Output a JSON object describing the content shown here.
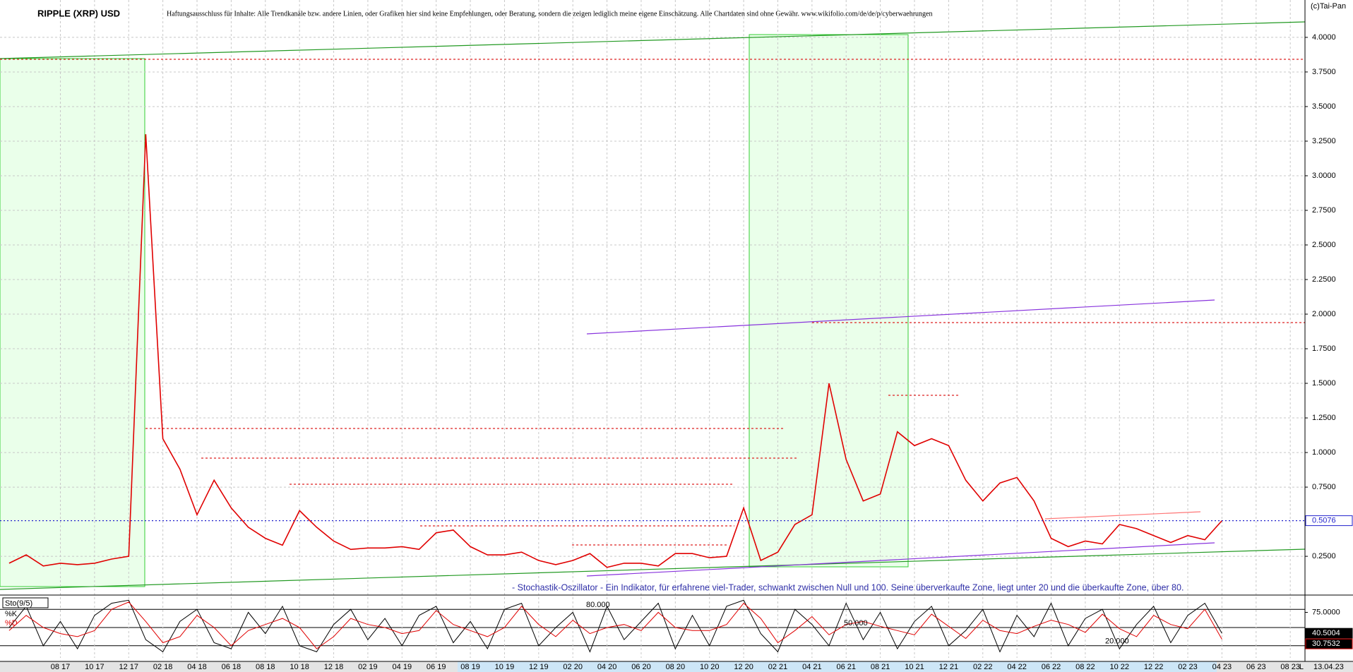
{
  "chart_data": {
    "type": "line",
    "title": "RIPPLE (XRP) USD",
    "disclaimer": "Haftungsausschluss für Inhalte: Alle Trendkanäle bzw. andere Linien, oder Grafiken hier sind keine Empfehlungen, oder Beratung, sondern die zeigen lediglich meine eigene Einschätzung. Alle Chartdaten sind ohne Gewähr.  www.wikifolio.com/de/de/p/cyberwaehrungen",
    "copyright": "(c)Tai-Pan",
    "indicator_note": "- Stochastik-Oszillator - Ein Indikator, für erfahrene viel-Trader, schwankt zwischen Null und 100. Seine überverkaufte Zone, liegt unter 20 und die überkaufte Zone, über 80.",
    "indicator_label": "Sto(9/5)",
    "last_date": "13.04.23",
    "scale_mode": "L",
    "categories": [
      null,
      null,
      null,
      "08 17",
      null,
      "10 17",
      null,
      "12 17",
      null,
      "02 18",
      null,
      "04 18",
      null,
      "06 18",
      null,
      "08 18",
      null,
      "10 18",
      null,
      "12 18",
      null,
      "02 19",
      null,
      "04 19",
      null,
      "06 19",
      null,
      "08 19",
      null,
      "10 19",
      null,
      "12 19",
      null,
      "02 20",
      null,
      "04 20",
      null,
      "06 20",
      null,
      "08 20",
      null,
      "10 20",
      null,
      "12 20",
      null,
      "02 21",
      null,
      "04 21",
      null,
      "06 21",
      null,
      "08 21",
      null,
      "10 21",
      null,
      "12 21",
      null,
      "02 22",
      null,
      "04 22",
      null,
      "06 22",
      null,
      "08 22",
      null,
      "10 22",
      null,
      "12 22",
      null,
      "02 23",
      null,
      "04 23",
      null,
      "06 23",
      null,
      "08 23"
    ],
    "series": [
      {
        "color": "#e00000",
        "values": [
          0.2,
          0.26,
          0.18,
          0.2,
          0.19,
          0.2,
          0.23,
          0.25,
          3.3,
          1.1,
          0.88,
          0.55,
          0.8,
          0.6,
          0.46,
          0.38,
          0.33,
          0.58,
          0.46,
          0.36,
          0.3,
          0.31,
          0.31,
          0.32,
          0.3,
          0.42,
          0.44,
          0.32,
          0.26,
          0.26,
          0.28,
          0.22,
          0.19,
          0.22,
          0.27,
          0.17,
          0.2,
          0.2,
          0.18,
          0.27,
          0.27,
          0.24,
          0.25,
          0.6,
          0.22,
          0.28,
          0.48,
          0.55,
          1.5,
          0.95,
          0.65,
          0.7,
          1.15,
          1.05,
          1.1,
          1.05,
          0.8,
          0.65,
          0.78,
          0.82,
          0.65,
          0.38,
          0.32,
          0.36,
          0.34,
          0.48,
          0.45,
          0.4,
          0.35,
          0.4,
          0.37,
          0.5076,
          null,
          null,
          null,
          null
        ]
      },
      {
        "name": "%K",
        "color": "#000000",
        "axis": "y2",
        "values": [
          50,
          85,
          20,
          60,
          15,
          70,
          90,
          95,
          30,
          10,
          60,
          80,
          25,
          15,
          75,
          40,
          85,
          20,
          10,
          55,
          80,
          30,
          65,
          20,
          70,
          85,
          25,
          60,
          15,
          80,
          90,
          20,
          50,
          75,
          10,
          85,
          30,
          60,
          90,
          15,
          70,
          20,
          85,
          95,
          40,
          10,
          80,
          55,
          20,
          90,
          30,
          75,
          15,
          60,
          85,
          20,
          45,
          80,
          10,
          70,
          35,
          90,
          20,
          65,
          80,
          15,
          55,
          85,
          25,
          70,
          90,
          40.5004,
          null,
          null,
          null,
          null
        ]
      },
      {
        "name": "%D",
        "color": "#e00000",
        "axis": "y2",
        "values": [
          45,
          70,
          50,
          40,
          35,
          45,
          80,
          92,
          60,
          25,
          35,
          70,
          50,
          20,
          45,
          55,
          65,
          50,
          15,
          35,
          65,
          55,
          50,
          40,
          45,
          78,
          55,
          45,
          35,
          50,
          85,
          55,
          35,
          62,
          40,
          50,
          55,
          45,
          75,
          50,
          45,
          45,
          55,
          90,
          65,
          25,
          45,
          68,
          38,
          55,
          60,
          52,
          45,
          38,
          72,
          52,
          32,
          62,
          45,
          40,
          52,
          62,
          55,
          42,
          72,
          48,
          35,
          70,
          55,
          48,
          80,
          30.7532,
          null,
          null,
          null,
          null
        ]
      }
    ],
    "ylim": [
      -0.03,
      4.27
    ],
    "yticks": [
      {
        "value": 4,
        "label": "4.0000"
      },
      {
        "value": 3.75,
        "label": "3.7500"
      },
      {
        "value": 3.5,
        "label": "3.5000"
      },
      {
        "value": 3.25,
        "label": "3.2500"
      },
      {
        "value": 3,
        "label": "3.0000"
      },
      {
        "value": 2.75,
        "label": "2.7500"
      },
      {
        "value": 2.5,
        "label": "2.5000"
      },
      {
        "value": 2.25,
        "label": "2.2500"
      },
      {
        "value": 2,
        "label": "2.0000"
      },
      {
        "value": 1.75,
        "label": "1.7500"
      },
      {
        "value": 1.5,
        "label": "1.5000"
      },
      {
        "value": 1.25,
        "label": "1.2500"
      },
      {
        "value": 1,
        "label": "1.0000"
      },
      {
        "value": 0.75,
        "label": "0.7500"
      },
      {
        "value": 0.25,
        "label": "0.2500"
      }
    ],
    "y2lim": [
      0,
      100
    ],
    "y2ticks": [
      {
        "value": 75,
        "label": "75.0000"
      }
    ],
    "y2_levels": [
      {
        "value": 80,
        "label": "80.000"
      },
      {
        "value": 50,
        "label": "50.000"
      },
      {
        "value": 20,
        "label": "20.000"
      }
    ],
    "grid": true
  }
}
